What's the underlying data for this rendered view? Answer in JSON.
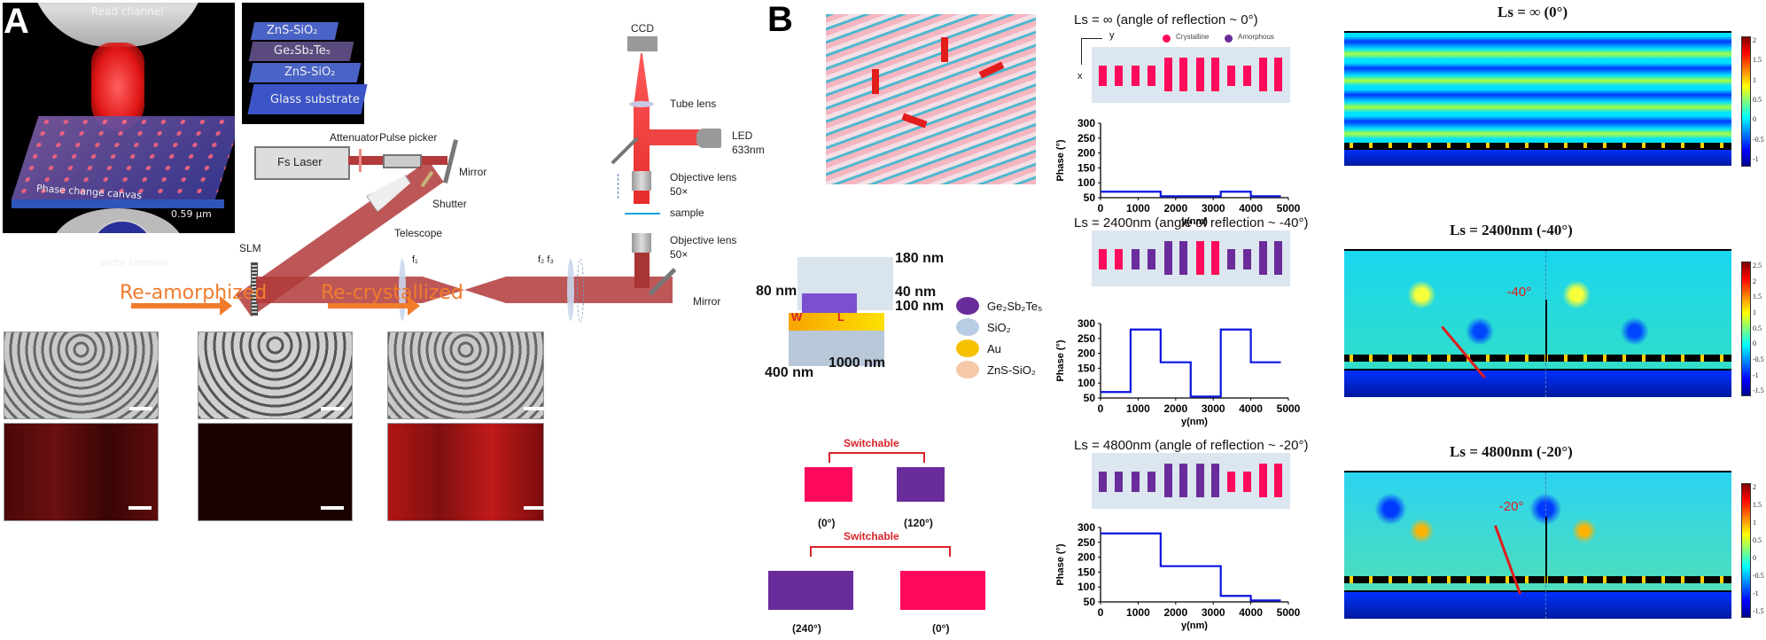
{
  "panel_a": {
    "letter": "A",
    "schematic": {
      "read_channel": "Read channel",
      "write_channel": "Write channel",
      "canvas_label": "Phase change canvas",
      "spacing_label": "0.59 µm"
    },
    "stack": {
      "layers": [
        "ZnS-SiO₂",
        "Ge₂Sb₂Te₅",
        "ZnS-SiO₂",
        "Glass substrate"
      ]
    },
    "optical_setup": {
      "fs_laser": "Fs Laser",
      "attenuator": "Attenuator",
      "pulse_picker": "Pulse picker",
      "mirror_top": "Mirror",
      "shutter": "Shutter",
      "telescope": "Telescope",
      "slm": "SLM",
      "f1": "f₁",
      "f2f3": "f₂ f₃",
      "mirror_bottom": "Mirror",
      "ccd": "CCD",
      "tube_lens": "Tube lens",
      "led": "LED",
      "led_wavelength": "633nm",
      "objective_top": "Objective lens",
      "objective_top_mag": "50×",
      "sample": "sample",
      "objective_bottom": "Objective lens",
      "objective_bottom_mag": "50×"
    },
    "transitions": {
      "step1": "Re-amorphized",
      "step2": "Re-crystallized"
    },
    "colors": {
      "arrow": "#f07c2c",
      "beam": "#b23a3a"
    }
  },
  "panel_b": {
    "letter": "B",
    "unit_cell": {
      "dims": {
        "top": "180 nm",
        "mid": "40 nm",
        "bottom": "100 nm",
        "height_left": "80 nm",
        "width": "400 nm",
        "depth": "1000 nm",
        "w": "W",
        "l": "L"
      },
      "legend": [
        {
          "label": "Ge₂Sb₂Te₅",
          "color": "#6a2c9a"
        },
        {
          "label": "SiO₂",
          "color": "#b8cde3"
        },
        {
          "label": "Au",
          "color": "#f6c200"
        },
        {
          "label": "ZnS-SiO₂",
          "color": "#f5c9a8"
        }
      ]
    },
    "switchable": [
      {
        "label": "Switchable",
        "left": {
          "phase": "(0°)",
          "color": "#ff0a5a"
        },
        "right": {
          "phase": "(120°)",
          "color": "#6a2c9a"
        }
      },
      {
        "label": "Switchable",
        "left": {
          "phase": "(240°)",
          "color": "#6a2c9a"
        },
        "right": {
          "phase": "(0°)",
          "color": "#ff0a5a"
        }
      }
    ],
    "pattern_legend": {
      "axis_y": "y",
      "axis_x": "x",
      "crystalline": "Crystalline",
      "amorphous": "Amorphous",
      "crystalline_color": "#ff0a5a",
      "amorphous_color": "#6a2c9a"
    },
    "field_maps": [
      {
        "title": "Ls = ∞ (0°)",
        "angle_label": "",
        "cbar_ticks": [
          "2",
          "1.5",
          "1",
          "0.5",
          "0",
          "-0.5",
          "-1"
        ]
      },
      {
        "title": "Ls = 2400nm (-40°)",
        "angle_label": "-40°",
        "cbar_ticks": [
          "2.5",
          "2",
          "1.5",
          "1",
          "0.5",
          "0",
          "-0.5",
          "-1",
          "-1.5"
        ]
      },
      {
        "title": "Ls = 4800nm (-20°)",
        "angle_label": "-20°",
        "cbar_ticks": [
          "2",
          "1.5",
          "1",
          "0.5",
          "0",
          "-0.5",
          "-1",
          "-1.5"
        ]
      }
    ]
  },
  "chart_data": [
    {
      "type": "line",
      "title": "Ls = ∞ (angle of reflection ~ 0°)",
      "pattern": [
        "C",
        "C",
        "C",
        "C",
        "C",
        "C",
        "C",
        "C",
        "C",
        "C",
        "C",
        "C"
      ],
      "pattern_long": [
        false,
        false,
        false,
        false,
        true,
        true,
        true,
        true,
        false,
        false,
        true,
        true
      ],
      "x": [
        0,
        1600,
        1600,
        3200,
        3200,
        4000,
        4000,
        4800
      ],
      "y": [
        70,
        70,
        55,
        55,
        70,
        70,
        55,
        55
      ],
      "xlabel": "y(nm)",
      "ylabel": "Phase (°)",
      "xlim": [
        0,
        5000
      ],
      "ylim": [
        50,
        300
      ],
      "xticks": [
        0,
        1000,
        2000,
        3000,
        4000,
        5000
      ],
      "yticks": [
        50,
        100,
        150,
        200,
        250,
        300
      ],
      "grid": false
    },
    {
      "type": "line",
      "title": "Ls = 2400nm (angle of reflection ~ -40°)",
      "pattern": [
        "C",
        "C",
        "A",
        "A",
        "A",
        "A",
        "C",
        "C",
        "A",
        "A",
        "A",
        "A"
      ],
      "pattern_long": [
        false,
        false,
        false,
        false,
        true,
        true,
        true,
        true,
        false,
        false,
        true,
        true
      ],
      "x": [
        0,
        800,
        800,
        1600,
        1600,
        2400,
        2400,
        3200,
        3200,
        4000,
        4000,
        4800
      ],
      "y": [
        70,
        70,
        280,
        280,
        170,
        170,
        55,
        55,
        280,
        280,
        170,
        170
      ],
      "xlabel": "y(nm)",
      "ylabel": "Phase (°)",
      "xlim": [
        0,
        5000
      ],
      "ylim": [
        50,
        300
      ],
      "xticks": [
        0,
        1000,
        2000,
        3000,
        4000,
        5000
      ],
      "yticks": [
        50,
        100,
        150,
        200,
        250,
        300
      ],
      "grid": false
    },
    {
      "type": "line",
      "title": "Ls = 4800nm (angle of reflection ~ -20°)",
      "pattern": [
        "A",
        "A",
        "A",
        "A",
        "A",
        "A",
        "A",
        "A",
        "C",
        "C",
        "C",
        "C"
      ],
      "pattern_long": [
        false,
        false,
        false,
        false,
        true,
        true,
        true,
        true,
        false,
        false,
        true,
        true
      ],
      "x": [
        0,
        1600,
        1600,
        3200,
        3200,
        4000,
        4000,
        4800
      ],
      "y": [
        280,
        280,
        170,
        170,
        70,
        70,
        55,
        55
      ],
      "xlabel": "y(nm)",
      "ylabel": "Phase (°)",
      "xlim": [
        0,
        5000
      ],
      "ylim": [
        50,
        300
      ],
      "xticks": [
        0,
        1000,
        2000,
        3000,
        4000,
        5000
      ],
      "yticks": [
        50,
        100,
        150,
        200,
        250,
        300
      ],
      "grid": false
    }
  ]
}
